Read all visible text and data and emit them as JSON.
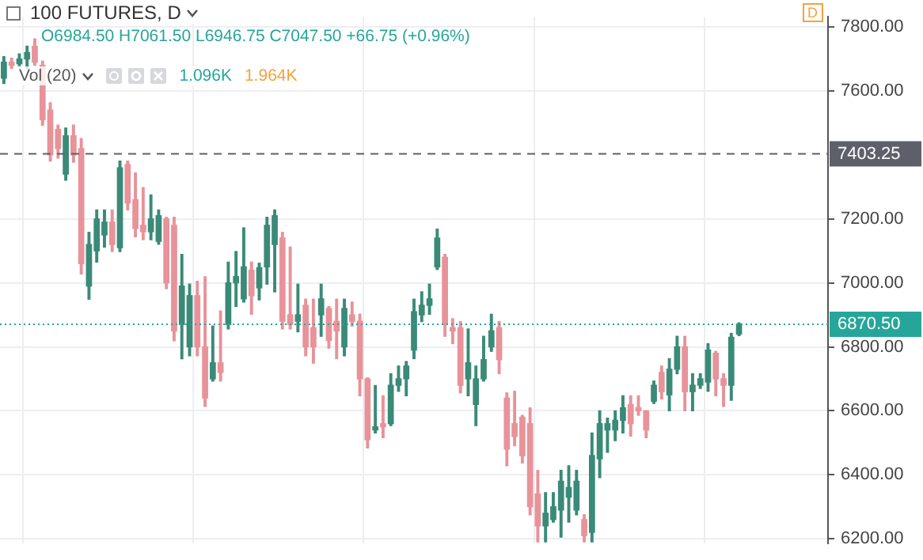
{
  "chart_data": {
    "type": "candlestick",
    "title": "100 FUTURES, D",
    "subtitle": "O6984.50 H7061.50 L6946.75 C7047.50 +66.75 (+0.96%)",
    "annotations": [
      "Vol (20)",
      "1.096K",
      "1.964K",
      "D"
    ],
    "categories": [
      null,
      null,
      null,
      null,
      null,
      null,
      null,
      null,
      null,
      null,
      null,
      null,
      null,
      null,
      null,
      null,
      null,
      null,
      null,
      null,
      null,
      null,
      null,
      null,
      null,
      null,
      null,
      null,
      null,
      null,
      null,
      null,
      null,
      null,
      null,
      null,
      null,
      null,
      null,
      null,
      null,
      null,
      null,
      null,
      null,
      null,
      null,
      null,
      null,
      null,
      null,
      null,
      null,
      null,
      null,
      null,
      null,
      null,
      null,
      null,
      null,
      null,
      null,
      null,
      null,
      null,
      null,
      null,
      null,
      null,
      null,
      null,
      null,
      null,
      null,
      null,
      null,
      null,
      null,
      null,
      null,
      null,
      null,
      null,
      null,
      null,
      null,
      null,
      null,
      null,
      null,
      null,
      null,
      null,
      null,
      null,
      null,
      null,
      null,
      null,
      null,
      null,
      null,
      null,
      null,
      null,
      null
    ],
    "ohlc": [
      [
        7640,
        7707,
        7623,
        7690
      ],
      [
        7690,
        7702,
        7670,
        7680
      ],
      [
        7685,
        7716,
        7679,
        7700
      ],
      [
        7700,
        7740,
        7670,
        7720
      ],
      [
        7740,
        7763,
        7680,
        7690
      ],
      [
        7680,
        7693,
        7493,
        7510
      ],
      [
        7540,
        7563,
        7381,
        7400
      ],
      [
        7480,
        7493,
        7390,
        7420
      ],
      [
        7340,
        7484,
        7321,
        7460
      ],
      [
        7460,
        7493,
        7377,
        7400
      ],
      [
        7420,
        7451,
        7028,
        7060
      ],
      [
        6990,
        7158,
        6949,
        7120
      ],
      [
        7100,
        7228,
        7065,
        7200
      ],
      [
        7150,
        7228,
        7112,
        7190
      ],
      [
        7190,
        7228,
        7098,
        7120
      ],
      [
        7110,
        7381,
        7098,
        7360
      ],
      [
        7370,
        7381,
        7228,
        7250
      ],
      [
        7260,
        7344,
        7144,
        7170
      ],
      [
        7180,
        7298,
        7135,
        7160
      ],
      [
        7160,
        7275,
        7135,
        7200
      ],
      [
        7130,
        7228,
        7121,
        7210
      ],
      [
        7200,
        7205,
        6982,
        7000
      ],
      [
        7180,
        7205,
        6819,
        6850
      ],
      [
        6870,
        7089,
        6763,
        6990
      ],
      [
        6800,
        6996,
        6772,
        6960
      ],
      [
        6960,
        7005,
        6772,
        6800
      ],
      [
        6800,
        7019,
        6614,
        6640
      ],
      [
        6700,
        6865,
        6693,
        6750
      ],
      [
        6750,
        6912,
        6693,
        6720
      ],
      [
        6870,
        7065,
        6856,
        7000
      ],
      [
        7000,
        7098,
        6926,
        7020
      ],
      [
        6950,
        7172,
        6940,
        7050
      ],
      [
        7040,
        7065,
        6902,
        6960
      ],
      [
        6984.5,
        7061.5,
        6946.75,
        7047.5
      ],
      [
        7050,
        7205,
        6996,
        7180
      ],
      [
        7120,
        7228,
        6972,
        7210
      ],
      [
        7140,
        7158,
        6856,
        6880
      ],
      [
        6900,
        7112,
        6856,
        6870
      ],
      [
        6880,
        6996,
        6847,
        6900
      ],
      [
        6930,
        6949,
        6772,
        6800
      ],
      [
        6860,
        6949,
        6749,
        6800
      ],
      [
        6900,
        6996,
        6833,
        6950
      ],
      [
        6920,
        6926,
        6796,
        6820
      ],
      [
        6880,
        6949,
        6763,
        6850
      ],
      [
        6800,
        6949,
        6772,
        6920
      ],
      [
        6900,
        6940,
        6865,
        6880
      ],
      [
        6880,
        6902,
        6647,
        6700
      ],
      [
        6700,
        6703,
        6484,
        6510
      ],
      [
        6540,
        6679,
        6531,
        6550
      ],
      [
        6560,
        6647,
        6516,
        6550
      ],
      [
        6560,
        6716,
        6554,
        6680
      ],
      [
        6680,
        6740,
        6661,
        6700
      ],
      [
        6700,
        6754,
        6647,
        6740
      ],
      [
        6790,
        6949,
        6763,
        6910
      ],
      [
        6900,
        6972,
        6879,
        6930
      ],
      [
        6930,
        6996,
        6902,
        6950
      ],
      [
        7050,
        7168,
        7042,
        7140
      ],
      [
        7080,
        7089,
        6833,
        6870
      ],
      [
        6860,
        6888,
        6810,
        6850
      ],
      [
        6860,
        6879,
        6656,
        6680
      ],
      [
        6700,
        6856,
        6647,
        6750
      ],
      [
        6620,
        6740,
        6554,
        6700
      ],
      [
        6700,
        6833,
        6693,
        6760
      ],
      [
        6800,
        6902,
        6786,
        6850
      ],
      [
        6860,
        6879,
        6716,
        6760
      ],
      [
        6640,
        6656,
        6428,
        6480
      ],
      [
        6560,
        6661,
        6491,
        6520
      ],
      [
        6580,
        6586,
        6437,
        6460
      ],
      [
        6560,
        6609,
        6275,
        6300
      ],
      [
        6340,
        6414,
        6190,
        6240
      ],
      [
        6240,
        6344,
        6190,
        6280
      ],
      [
        6260,
        6344,
        6252,
        6300
      ],
      [
        6290,
        6414,
        6205,
        6380
      ],
      [
        6330,
        6428,
        6252,
        6360
      ],
      [
        6290,
        6414,
        6275,
        6380
      ],
      [
        6260,
        6275,
        6190,
        6210
      ],
      [
        6220,
        6531,
        6190,
        6460
      ],
      [
        6450,
        6600,
        6391,
        6560
      ],
      [
        6540,
        6577,
        6470,
        6560
      ],
      [
        6540,
        6600,
        6507,
        6570
      ],
      [
        6570,
        6647,
        6531,
        6610
      ],
      [
        6620,
        6647,
        6521,
        6560
      ],
      [
        6610,
        6647,
        6586,
        6600
      ],
      [
        6600,
        6600,
        6516,
        6540
      ],
      [
        6630,
        6693,
        6623,
        6680
      ],
      [
        6720,
        6740,
        6637,
        6660
      ],
      [
        6650,
        6763,
        6600,
        6730
      ],
      [
        6730,
        6833,
        6716,
        6800
      ],
      [
        6800,
        6833,
        6600,
        6660
      ],
      [
        6660,
        6716,
        6600,
        6680
      ],
      [
        6680,
        6716,
        6670,
        6700
      ],
      [
        6690,
        6810,
        6661,
        6790
      ],
      [
        6780,
        6786,
        6647,
        6700
      ],
      [
        6700,
        6716,
        6614,
        6680
      ],
      [
        6680,
        6842,
        6633,
        6830
      ],
      [
        6840,
        6875,
        6835,
        6870.5
      ],
      null,
      null,
      null,
      null,
      null,
      null,
      null,
      null,
      null,
      null,
      null
    ],
    "ylim": [
      6186,
      7832
    ],
    "yticks": [
      {
        "value": 6200,
        "label": "6200.00"
      },
      {
        "value": 6400,
        "label": "6400.00"
      },
      {
        "value": 6600,
        "label": "6600.00"
      },
      {
        "value": 6800,
        "label": "6800.00"
      },
      {
        "value": 7000,
        "label": "7000.00"
      },
      {
        "value": 7200,
        "label": "7200.00"
      },
      {
        "value": 7600,
        "label": "7600.00"
      },
      {
        "value": 7800,
        "label": "7800.00"
      }
    ],
    "ref_lines": [
      {
        "axis": "y",
        "value": 7403.25,
        "label": "7403.25",
        "color": "#5d606b",
        "line_style": "dashed"
      },
      {
        "axis": "y",
        "value": 6870.5,
        "label": "6870.50",
        "color": "#26a69a",
        "line_style": "dotted"
      }
    ],
    "grid": true,
    "tick_labels": "y"
  }
}
